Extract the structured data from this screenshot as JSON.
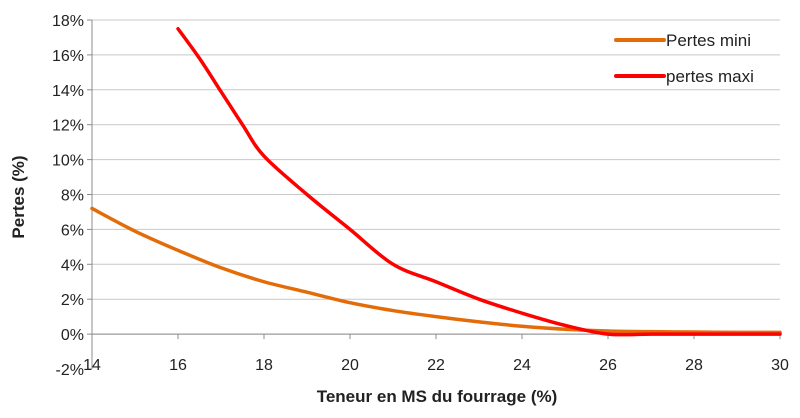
{
  "chart_data": {
    "type": "line",
    "title": "",
    "xlabel": "Teneur en MS du fourrage (%)",
    "ylabel": "Pertes (%)",
    "xlim": [
      14,
      30
    ],
    "ylim": [
      -2,
      18
    ],
    "xticks": [
      14,
      16,
      18,
      20,
      22,
      24,
      26,
      28,
      30
    ],
    "yticks": [
      -2,
      0,
      2,
      4,
      6,
      8,
      10,
      12,
      14,
      16,
      18
    ],
    "xtick_labels": [
      "14",
      "16",
      "18",
      "20",
      "22",
      "24",
      "26",
      "28",
      "30"
    ],
    "ytick_labels": [
      "-2%",
      "0%",
      "2%",
      "4%",
      "6%",
      "8%",
      "10%",
      "12%",
      "14%",
      "16%",
      "18%"
    ],
    "grid": "horizontal",
    "legend_position": "top-right",
    "series": [
      {
        "name": "Pertes mini",
        "color": "#E36C09",
        "x": [
          14,
          15,
          16,
          17,
          18,
          19,
          20,
          21,
          22,
          23,
          24,
          25,
          26,
          27,
          28,
          29,
          30
        ],
        "y": [
          7.2,
          5.9,
          4.8,
          3.8,
          3.0,
          2.4,
          1.8,
          1.35,
          1.0,
          0.7,
          0.45,
          0.28,
          0.18,
          0.14,
          0.12,
          0.1,
          0.1
        ]
      },
      {
        "name": "pertes maxi",
        "color": "#FF0000",
        "x": [
          16,
          16.5,
          17,
          17.5,
          18,
          19,
          20,
          21,
          22,
          23,
          24,
          25,
          26,
          27,
          28,
          29,
          30
        ],
        "y": [
          17.5,
          15.8,
          13.9,
          12.0,
          10.2,
          8.0,
          6.0,
          4.0,
          3.0,
          2.0,
          1.2,
          0.5,
          0.0,
          0.0,
          0.0,
          0.0,
          0.0
        ]
      }
    ]
  }
}
